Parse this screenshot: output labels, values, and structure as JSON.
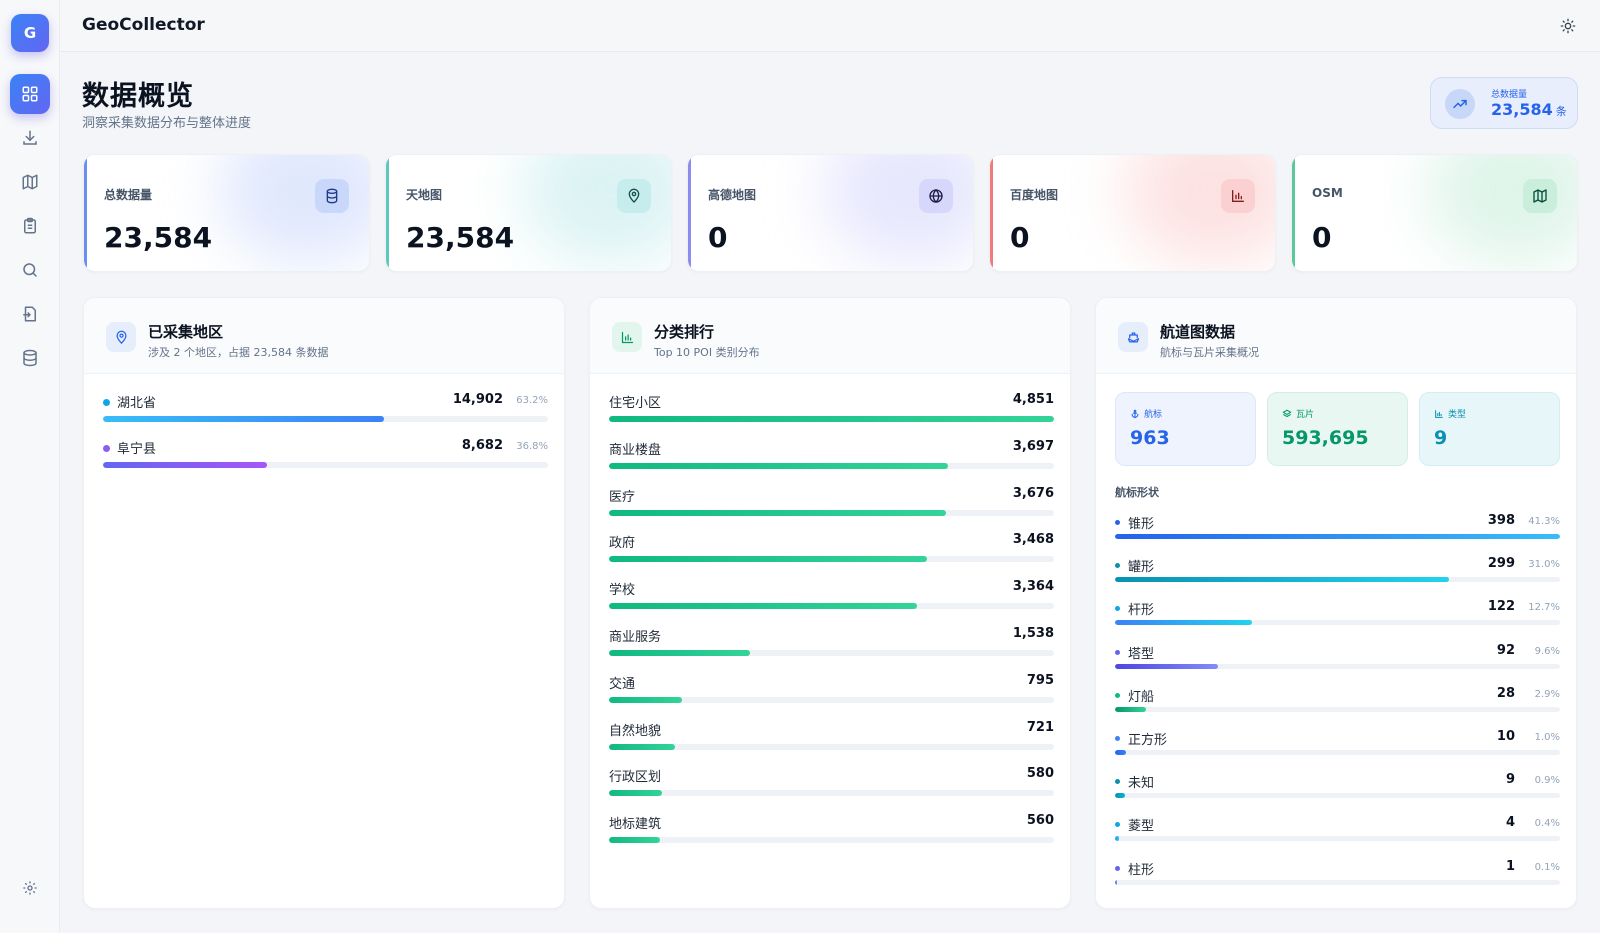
{
  "app": {
    "logo_letter": "G",
    "title": "GeoCollector"
  },
  "sidebar": {
    "items": [
      {
        "id": "dashboard",
        "icon": "dashboard-icon",
        "active": true
      },
      {
        "id": "download",
        "icon": "download-icon"
      },
      {
        "id": "map",
        "icon": "map-icon"
      },
      {
        "id": "tasks",
        "icon": "clipboard-icon"
      },
      {
        "id": "search",
        "icon": "search-icon"
      },
      {
        "id": "export",
        "icon": "file-export-icon"
      },
      {
        "id": "database",
        "icon": "database-icon"
      }
    ],
    "settings_icon": "gear-icon"
  },
  "header": {
    "title": "数据概览",
    "subtitle": "洞察采集数据分布与整体进度",
    "total_chip": {
      "label": "总数据量",
      "value": "23,584",
      "unit": "条"
    }
  },
  "stats": [
    {
      "label": "总数据量",
      "value": "23,584",
      "icon": "database-icon",
      "accent": "#6b8ff0"
    },
    {
      "label": "天地图",
      "value": "23,584",
      "icon": "map-pin-icon",
      "accent": "#5fc6c0"
    },
    {
      "label": "高德地图",
      "value": "0",
      "icon": "globe-icon",
      "accent": "#8b8cf0"
    },
    {
      "label": "百度地图",
      "value": "0",
      "icon": "bar-chart-icon",
      "accent": "#ef7b7b"
    },
    {
      "label": "OSM",
      "value": "0",
      "icon": "map-icon",
      "accent": "#5cc79a"
    }
  ],
  "regions": {
    "title": "已采集地区",
    "subtitle": "涉及 2 个地区，占据 23,584 条数据",
    "items": [
      {
        "name": "湖北省",
        "value": "14,902",
        "pct": "63.2%",
        "ratio": 0.632,
        "color": "#0ea5e9",
        "gradient": "linear-gradient(90deg,#38bdf8,#3b82f6)"
      },
      {
        "name": "阜宁县",
        "value": "8,682",
        "pct": "36.8%",
        "ratio": 0.368,
        "color": "#8b5cf6",
        "gradient": "linear-gradient(90deg,#6366f1,#a855f7)"
      }
    ]
  },
  "categories": {
    "title": "分类排行",
    "subtitle": "Top 10 POI 类别分布",
    "items": [
      {
        "name": "住宅小区",
        "value": "4,851",
        "ratio": 1.0
      },
      {
        "name": "商业楼盘",
        "value": "3,697",
        "ratio": 0.762
      },
      {
        "name": "医疗",
        "value": "3,676",
        "ratio": 0.758
      },
      {
        "name": "政府",
        "value": "3,468",
        "ratio": 0.715
      },
      {
        "name": "学校",
        "value": "3,364",
        "ratio": 0.693
      },
      {
        "name": "商业服务",
        "value": "1,538",
        "ratio": 0.317
      },
      {
        "name": "交通",
        "value": "795",
        "ratio": 0.164
      },
      {
        "name": "自然地貌",
        "value": "721",
        "ratio": 0.149
      },
      {
        "name": "行政区划",
        "value": "580",
        "ratio": 0.12
      },
      {
        "name": "地标建筑",
        "value": "560",
        "ratio": 0.115
      }
    ]
  },
  "channel": {
    "title": "航道图数据",
    "subtitle": "航标与瓦片采集概况",
    "cards": [
      {
        "label": "航标",
        "value": "963",
        "icon": "anchor-icon",
        "bg": "#eef3fd",
        "fg": "#2563eb"
      },
      {
        "label": "瓦片",
        "value": "593,695",
        "icon": "layers-icon",
        "bg": "#e8f7f1",
        "fg": "#059669"
      },
      {
        "label": "类型",
        "value": "9",
        "icon": "bar-chart-icon",
        "bg": "#e7f6f8",
        "fg": "#0891b2"
      }
    ],
    "shapes_title": "航标形状",
    "shapes": [
      {
        "name": "锥形",
        "value": "398",
        "pct": "41.3%",
        "ratio": 1.0,
        "color": "#2563eb",
        "gradient": "linear-gradient(90deg,#2563eb,#38bdf8)"
      },
      {
        "name": "罐形",
        "value": "299",
        "pct": "31.0%",
        "ratio": 0.751,
        "color": "#0891b2",
        "gradient": "linear-gradient(90deg,#0891b2,#22d3ee)"
      },
      {
        "name": "杆形",
        "value": "122",
        "pct": "12.7%",
        "ratio": 0.307,
        "color": "#0ea5e9",
        "gradient": "linear-gradient(90deg,#3b82f6,#22d3ee)"
      },
      {
        "name": "塔型",
        "value": "92",
        "pct": "9.6%",
        "ratio": 0.231,
        "color": "#6366f1",
        "gradient": "linear-gradient(90deg,#4f46e5,#818cf8)"
      },
      {
        "name": "灯船",
        "value": "28",
        "pct": "2.9%",
        "ratio": 0.07,
        "color": "#10b981",
        "gradient": "linear-gradient(90deg,#059669,#34d399)"
      },
      {
        "name": "正方形",
        "value": "10",
        "pct": "1.0%",
        "ratio": 0.025,
        "color": "#3b82f6",
        "gradient": "linear-gradient(90deg,#2563eb,#3b82f6)"
      },
      {
        "name": "未知",
        "value": "9",
        "pct": "0.9%",
        "ratio": 0.023,
        "color": "#0891b2",
        "gradient": "linear-gradient(90deg,#0891b2,#06b6d4)"
      },
      {
        "name": "菱型",
        "value": "4",
        "pct": "0.4%",
        "ratio": 0.01,
        "color": "#0ea5e9",
        "gradient": "linear-gradient(90deg,#0ea5e9,#38bdf8)"
      },
      {
        "name": "柱形",
        "value": "1",
        "pct": "0.1%",
        "ratio": 0.003,
        "color": "#6366f1",
        "gradient": "linear-gradient(90deg,#6366f1,#818cf8)"
      }
    ]
  }
}
